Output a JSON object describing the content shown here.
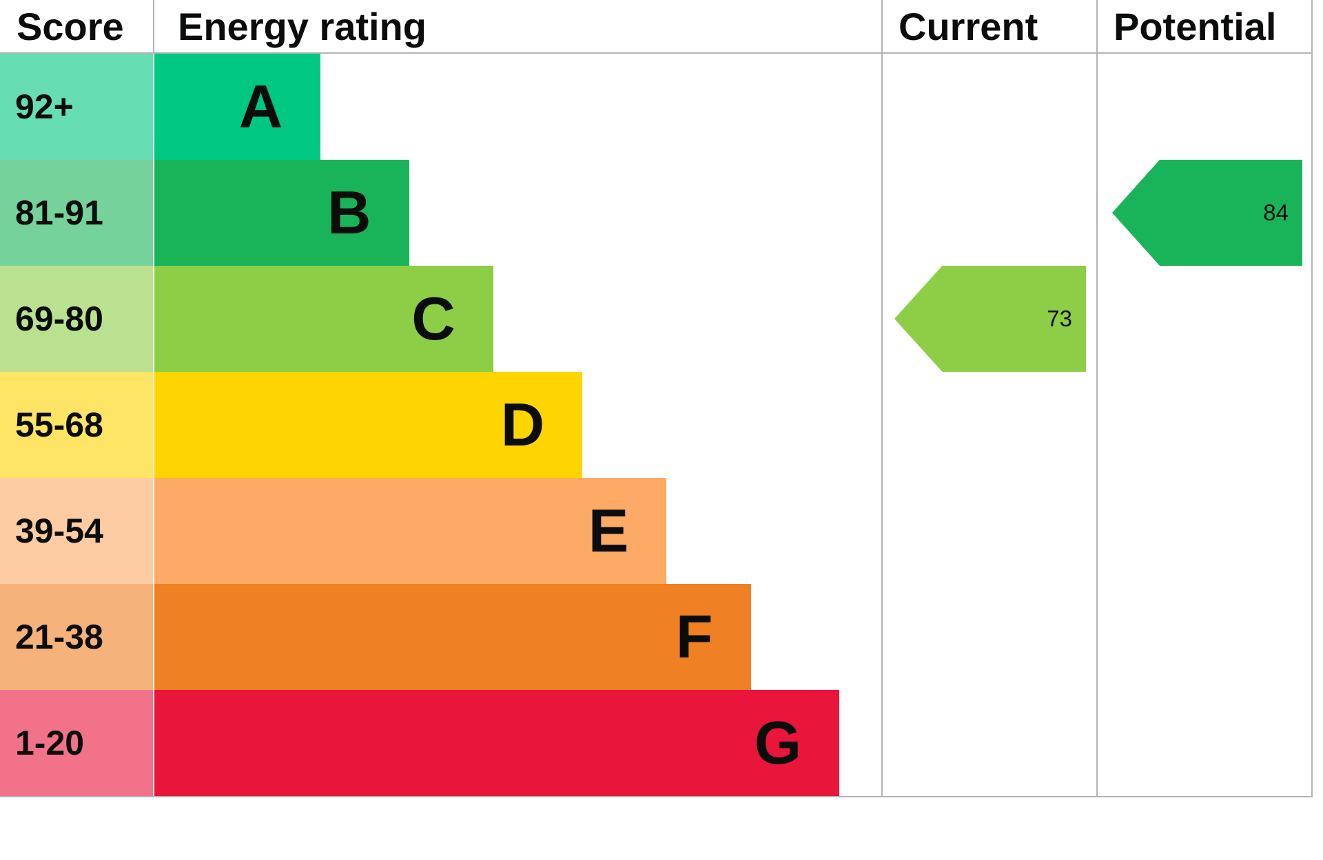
{
  "header": {
    "score": "Score",
    "rating": "Energy rating",
    "current": "Current",
    "potential": "Potential"
  },
  "chart_data": {
    "type": "bar",
    "orientation": "horizontal",
    "title": "Energy rating",
    "columns": [
      "Score",
      "Energy rating",
      "Current",
      "Potential"
    ],
    "bands": [
      {
        "letter": "A",
        "score": "92+",
        "color": "#00c781",
        "score_bg": "#66ddb3",
        "width_pct": 22.9
      },
      {
        "letter": "B",
        "score": "81-91",
        "color": "#19b459",
        "score_bg": "#75d29b",
        "width_pct": 35.1
      },
      {
        "letter": "C",
        "score": "69-80",
        "color": "#8dce46",
        "score_bg": "#bae190",
        "width_pct": 46.7
      },
      {
        "letter": "D",
        "score": "55-68",
        "color": "#ffd500",
        "score_bg": "#ffe566",
        "width_pct": 59.0
      },
      {
        "letter": "E",
        "score": "39-54",
        "color": "#fcaa65",
        "score_bg": "#fdcca2",
        "width_pct": 70.6
      },
      {
        "letter": "F",
        "score": "21-38",
        "color": "#ef8023",
        "score_bg": "#f5b27b",
        "width_pct": 82.2
      },
      {
        "letter": "G",
        "score": "1-20",
        "color": "#e9153b",
        "score_bg": "#f27289",
        "width_pct": 94.4
      }
    ],
    "current": {
      "value": 73,
      "band": "C",
      "color": "#8dce46"
    },
    "potential": {
      "value": 84,
      "band": "B",
      "color": "#19b459"
    },
    "border_color": "#b1b4b6"
  }
}
